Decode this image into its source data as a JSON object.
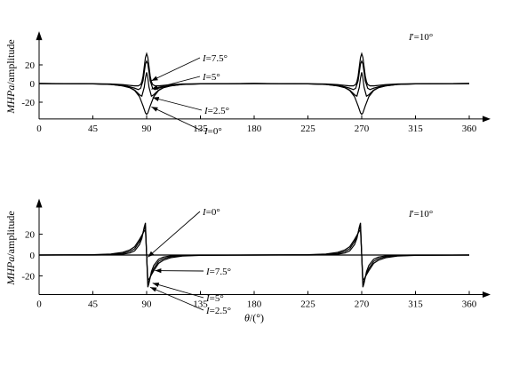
{
  "chart_data": [
    {
      "type": "line",
      "panel": "top",
      "xlabel": "",
      "ylabel": "MHPa/amplitude",
      "ylabel_parts": [
        "MHPa",
        "/amplitude"
      ],
      "xlim": [
        0,
        360
      ],
      "ylim": [
        -38,
        38
      ],
      "xticks": [
        0,
        45,
        90,
        135,
        180,
        225,
        270,
        315,
        360
      ],
      "yticks": [
        -20,
        0,
        20
      ],
      "panel_label": {
        "text": "I'=10°",
        "italic": "I",
        "rest": "'=10°"
      },
      "annotations": [
        {
          "italic": "I",
          "text": "=7.5°",
          "target_x": 94,
          "target_y": 3
        },
        {
          "italic": "I",
          "text": "=5°",
          "target_x": 94,
          "target_y": -6
        },
        {
          "italic": "I",
          "text": "=2.5°",
          "target_x": 95,
          "target_y": -15
        },
        {
          "italic": "I",
          "text": "=0°",
          "target_x": 94,
          "target_y": -25
        }
      ],
      "series": [
        {
          "label": "I=0°",
          "x": [
            0,
            45,
            60,
            70,
            76,
            80,
            84,
            87,
            89,
            90,
            91,
            93,
            96,
            100,
            104,
            110,
            120,
            135,
            180,
            225,
            240,
            250,
            256,
            260,
            264,
            267,
            269,
            270,
            271,
            273,
            276,
            280,
            284,
            290,
            300,
            315,
            360
          ],
          "y": [
            0,
            -0.4,
            -1,
            -2.5,
            -4.5,
            -7.5,
            -14,
            -24,
            -31.5,
            -33,
            -31.5,
            -24,
            -14,
            -7.5,
            -4.5,
            -2.5,
            -1,
            -0.4,
            0,
            -0.4,
            -1,
            -2.5,
            -4.5,
            -7.5,
            -14,
            -24,
            -31.5,
            -33,
            -31.5,
            -24,
            -14,
            -7.5,
            -4.5,
            -2.5,
            -1,
            -0.4,
            0
          ]
        },
        {
          "label": "I=2.5°",
          "x": [
            0,
            45,
            60,
            70,
            76,
            80,
            84,
            86,
            88,
            89,
            90,
            91,
            92,
            94,
            96,
            100,
            104,
            110,
            120,
            135,
            180,
            225,
            240,
            250,
            256,
            260,
            264,
            266,
            268,
            269,
            270,
            271,
            272,
            274,
            276,
            280,
            284,
            290,
            300,
            315,
            360
          ],
          "y": [
            0,
            -0.4,
            -1,
            -2.5,
            -4.5,
            -7,
            -12,
            -13.5,
            -4,
            6,
            12,
            6,
            -4,
            -13.5,
            -12,
            -7,
            -4.5,
            -2.5,
            -1,
            -0.4,
            0,
            -0.4,
            -1,
            -2.5,
            -4.5,
            -7,
            -12,
            -13.5,
            -4,
            6,
            12,
            6,
            -4,
            -13.5,
            -12,
            -7,
            -4.5,
            -2.5,
            -1,
            -0.4,
            0
          ]
        },
        {
          "label": "I=5°",
          "x": [
            0,
            45,
            60,
            70,
            76,
            80,
            83,
            85,
            87,
            88,
            89,
            90,
            91,
            92,
            93,
            95,
            97,
            100,
            104,
            110,
            120,
            135,
            180,
            225,
            240,
            250,
            256,
            260,
            263,
            265,
            267,
            268,
            269,
            270,
            271,
            272,
            273,
            275,
            277,
            280,
            284,
            290,
            300,
            315,
            360
          ],
          "y": [
            0,
            -0.3,
            -0.8,
            -2,
            -3.5,
            -5,
            -6.5,
            -5,
            3,
            12,
            21,
            24,
            21,
            12,
            3,
            -5,
            -6.5,
            -5,
            -3.5,
            -2,
            -0.8,
            -0.3,
            0,
            -0.3,
            -0.8,
            -2,
            -3.5,
            -5,
            -6.5,
            -5,
            3,
            12,
            21,
            24,
            21,
            12,
            3,
            -5,
            -6.5,
            -5,
            -3.5,
            -2,
            -0.8,
            -0.3,
            0
          ]
        },
        {
          "label": "I=7.5°",
          "x": [
            0,
            45,
            60,
            70,
            76,
            80,
            83,
            85,
            86,
            87,
            88,
            89,
            90,
            91,
            92,
            93,
            94,
            95,
            97,
            100,
            104,
            110,
            120,
            135,
            180,
            225,
            240,
            250,
            256,
            260,
            263,
            265,
            266,
            267,
            268,
            269,
            270,
            271,
            272,
            273,
            274,
            275,
            277,
            280,
            284,
            290,
            300,
            315,
            360
          ],
          "y": [
            0,
            -0.2,
            -0.5,
            -1.2,
            -2,
            -2.5,
            -2.5,
            -1,
            2,
            8,
            18,
            28,
            32,
            28,
            18,
            8,
            2,
            -1,
            -2.5,
            -2.5,
            -2,
            -1.2,
            -0.5,
            -0.2,
            0,
            -0.2,
            -0.5,
            -1.2,
            -2,
            -2.5,
            -2.5,
            -1,
            2,
            8,
            18,
            28,
            32,
            28,
            18,
            8,
            2,
            -1,
            -2.5,
            -2.5,
            -2,
            -1.2,
            -0.5,
            -0.2,
            0
          ]
        }
      ]
    },
    {
      "type": "line",
      "panel": "bottom",
      "xlabel": "θ/(°)",
      "xlabel_parts": [
        "θ",
        "/(°)"
      ],
      "ylabel": "MHPa/amplitude",
      "ylabel_parts": [
        "MHPa",
        "/amplitude"
      ],
      "xlim": [
        0,
        360
      ],
      "ylim": [
        -38,
        38
      ],
      "xticks": [
        0,
        45,
        90,
        135,
        180,
        225,
        270,
        315,
        360
      ],
      "yticks": [
        -20,
        0,
        20
      ],
      "panel_label": {
        "text": "I'=10°",
        "italic": "I",
        "rest": "'=10°"
      },
      "annotations": [
        {
          "italic": "I",
          "text": "=0°",
          "target_x": 91,
          "target_y": -2
        },
        {
          "italic": "I",
          "text": "=7.5°",
          "target_x": 97,
          "target_y": -15
        },
        {
          "italic": "I",
          "text": "=5°",
          "target_x": 95,
          "target_y": -27
        },
        {
          "italic": "I",
          "text": "=2.5°",
          "target_x": 93,
          "target_y": -31
        }
      ],
      "series": [
        {
          "label": "I=0°",
          "x": [
            0,
            360
          ],
          "y": [
            0,
            0
          ]
        },
        {
          "label": "I=2.5°",
          "x": [
            0,
            45,
            60,
            70,
            76,
            80,
            84,
            86,
            88,
            89,
            90,
            91,
            92,
            94,
            96,
            100,
            104,
            110,
            120,
            135,
            180,
            225,
            240,
            250,
            256,
            260,
            264,
            266,
            268,
            269,
            270,
            271,
            272,
            274,
            276,
            280,
            284,
            290,
            300,
            315,
            360
          ],
          "y": [
            0,
            0,
            0.2,
            0.8,
            2,
            4,
            10,
            16,
            27,
            31,
            0,
            -31,
            -27,
            -16,
            -10,
            -4,
            -2,
            -0.8,
            -0.2,
            0,
            0,
            0,
            0.2,
            0.8,
            2,
            4,
            10,
            16,
            27,
            31,
            0,
            -31,
            -27,
            -16,
            -10,
            -4,
            -2,
            -0.8,
            -0.2,
            0,
            0
          ]
        },
        {
          "label": "I=5°",
          "x": [
            0,
            45,
            60,
            70,
            76,
            80,
            84,
            86,
            88,
            89,
            90,
            91,
            92,
            94,
            96,
            100,
            104,
            110,
            120,
            135,
            180,
            225,
            240,
            250,
            256,
            260,
            264,
            266,
            268,
            269,
            270,
            271,
            272,
            274,
            276,
            280,
            284,
            290,
            300,
            315,
            360
          ],
          "y": [
            0,
            0.2,
            0.6,
            1.6,
            3.5,
            6,
            13,
            18,
            25,
            27.5,
            0,
            -27.5,
            -25,
            -18,
            -13,
            -6,
            -3.5,
            -1.6,
            -0.6,
            -0.2,
            0,
            0.2,
            0.6,
            1.6,
            3.5,
            6,
            13,
            18,
            25,
            27.5,
            0,
            -27.5,
            -25,
            -18,
            -13,
            -6,
            -3.5,
            -1.6,
            -0.6,
            -0.2,
            0
          ]
        },
        {
          "label": "I=7.5°",
          "x": [
            0,
            45,
            60,
            70,
            76,
            80,
            84,
            86,
            88,
            89,
            90,
            91,
            92,
            94,
            96,
            100,
            104,
            110,
            120,
            135,
            180,
            225,
            240,
            250,
            256,
            260,
            264,
            266,
            268,
            269,
            270,
            271,
            272,
            274,
            276,
            280,
            284,
            290,
            300,
            315,
            360
          ],
          "y": [
            0,
            0.3,
            1,
            2.6,
            5,
            8,
            15,
            19,
            23,
            24,
            0,
            -24,
            -23,
            -19,
            -15,
            -8,
            -5,
            -2.6,
            -1,
            -0.3,
            0,
            0.3,
            1,
            2.6,
            5,
            8,
            15,
            19,
            23,
            24,
            0,
            -24,
            -23,
            -19,
            -15,
            -8,
            -5,
            -2.6,
            -1,
            -0.3,
            0
          ]
        }
      ]
    }
  ]
}
